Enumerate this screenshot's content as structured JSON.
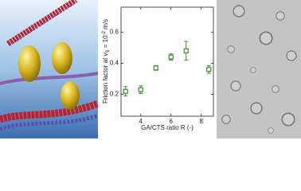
{
  "chart_data": {
    "type": "scatter",
    "x_label": "GA/CTS ratio R (-)",
    "y_label": {
      "start": "Friction factor at v",
      "sub": "S",
      "mid": " = 10",
      "sup": "-2",
      "end": " m/s"
    },
    "series": [
      {
        "color": "#3d8b2f",
        "x": [
          3,
          4,
          5,
          6,
          7,
          8.5
        ],
        "values": [
          0.22,
          0.23,
          0.37,
          0.44,
          0.48,
          0.36
        ],
        "errors": [
          0.03,
          0.025,
          0.015,
          0.02,
          0.06,
          0.025
        ]
      }
    ],
    "xlim": [
      2.7,
      8.8
    ],
    "xticks": [
      4,
      6,
      8
    ],
    "ylim": [
      0.06,
      0.76
    ],
    "yticks": [
      0.2,
      0.4,
      0.6
    ]
  }
}
